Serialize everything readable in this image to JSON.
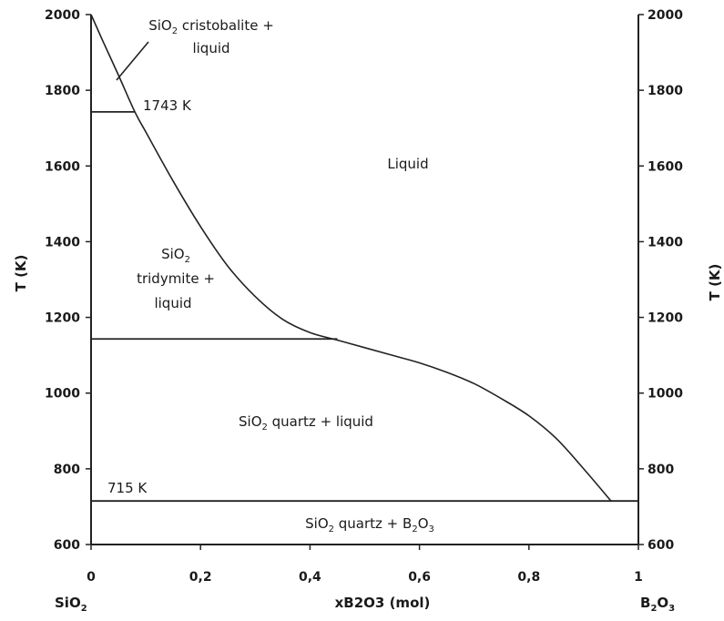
{
  "chart_data": {
    "type": "line",
    "title": "",
    "xlabel": "xB2O3 (mol)",
    "ylabel": "T (K)",
    "ylabel_right": "T (K)",
    "xlim": [
      0,
      1
    ],
    "ylim": [
      600,
      2000
    ],
    "x_ticks": [
      0,
      0.2,
      0.4,
      0.6,
      0.8,
      1
    ],
    "x_tick_labels": [
      "0",
      "0,2",
      "0,4",
      "0,6",
      "0,8",
      "1"
    ],
    "y_ticks": [
      600,
      800,
      1000,
      1200,
      1400,
      1600,
      1800,
      2000
    ],
    "y_tick_labels": [
      "600",
      "800",
      "1000",
      "1200",
      "1400",
      "1600",
      "1800",
      "2000"
    ],
    "x_end_labels": {
      "left": {
        "base": "SiO",
        "sub": "2"
      },
      "right": {
        "base": "B",
        "sub1": "2",
        "mid": "O",
        "sub2": "3"
      }
    },
    "grid": false,
    "series": [
      {
        "x": [
          0.0,
          0.02,
          0.05,
          0.08,
          0.1,
          0.15,
          0.2,
          0.25,
          0.3,
          0.35,
          0.4,
          0.45,
          0.5,
          0.55,
          0.6,
          0.65,
          0.7,
          0.75,
          0.8,
          0.85,
          0.9,
          0.95
        ],
        "y": [
          2000,
          1935,
          1840,
          1743,
          1690,
          1560,
          1440,
          1335,
          1255,
          1195,
          1160,
          1140,
          1120,
          1100,
          1080,
          1055,
          1025,
          985,
          940,
          880,
          800,
          715
        ]
      }
    ],
    "horizontal_lines": [
      {
        "y": 1743,
        "x_range": [
          0,
          0.08
        ]
      },
      {
        "y": 1143,
        "x_range": [
          0,
          0.45
        ]
      },
      {
        "y": 715,
        "x_range": [
          0,
          1
        ]
      }
    ],
    "annotations": {
      "t1743": "1743 K",
      "t715": "715 K"
    },
    "regions": {
      "cristobalite": {
        "line1_pre": "SiO",
        "line1_sub": "2",
        "line1_post": " cristobalite +",
        "line2": "liquid"
      },
      "liquid": "Liquid",
      "tridymite": {
        "line1_pre": "SiO",
        "line1_sub": "2",
        "line2": "tridymite +",
        "line3": "liquid"
      },
      "quartz_liquid": {
        "pre": "SiO",
        "sub": "2",
        "post": " quartz + liquid"
      },
      "quartz_b2o3": {
        "pre": "SiO",
        "sub1": "2",
        "mid": " quartz + B",
        "sub2": "2",
        "post2": "O",
        "sub3": "3"
      }
    }
  }
}
